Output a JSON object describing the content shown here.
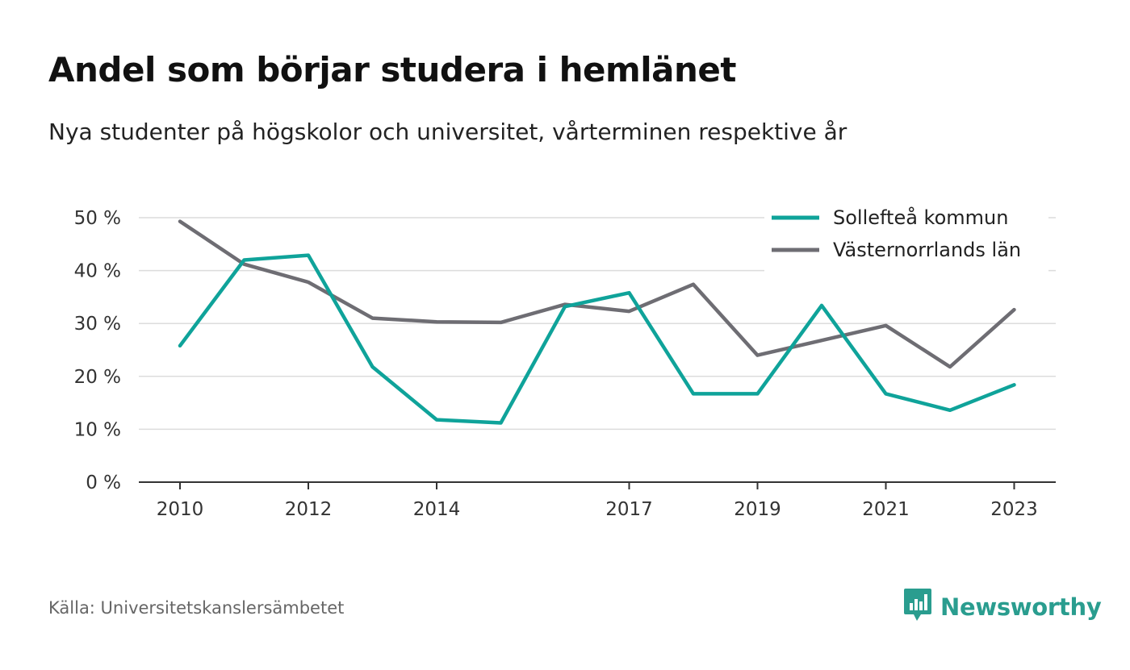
{
  "title": "Andel som börjar studera i hemlänet",
  "subtitle": "Nya studenter på högskolor och universitet, vårterminen respektive år",
  "source": "Källa: Universitetskanslersämbetet",
  "brand": {
    "name": "Newsworthy",
    "icon": "newsworthy-logo-icon",
    "color": "#2a9d8f"
  },
  "chart_data": {
    "type": "line",
    "title": "Andel som börjar studera i hemlänet",
    "subtitle": "Nya studenter på högskolor och universitet, vårterminen respektive år",
    "x": [
      2010,
      2011,
      2012,
      2013,
      2014,
      2015,
      2016,
      2017,
      2018,
      2019,
      2020,
      2021,
      2022,
      2023
    ],
    "x_tick_labels": [
      "2010",
      "2012",
      "2014",
      "2017",
      "2019",
      "2021",
      "2023"
    ],
    "y_ticks": [
      0,
      10,
      20,
      30,
      40,
      50
    ],
    "y_tick_labels": [
      "0 %",
      "10 %",
      "20 %",
      "30 %",
      "40 %",
      "50 %"
    ],
    "ylim": [
      0,
      50
    ],
    "grid": true,
    "legend_position": "top-right",
    "series": [
      {
        "name": "Sollefteå kommun",
        "color": "#0fa39a",
        "values": [
          25.8,
          42.0,
          42.9,
          21.8,
          11.8,
          11.2,
          33.2,
          35.8,
          16.7,
          16.7,
          33.4,
          16.7,
          13.6,
          18.4
        ]
      },
      {
        "name": "Västernorrlands län",
        "color": "#6e6d73",
        "values": [
          49.3,
          41.2,
          37.8,
          31.0,
          30.3,
          30.2,
          33.6,
          32.3,
          37.4,
          24.0,
          26.8,
          29.6,
          21.8,
          32.6
        ]
      }
    ]
  }
}
